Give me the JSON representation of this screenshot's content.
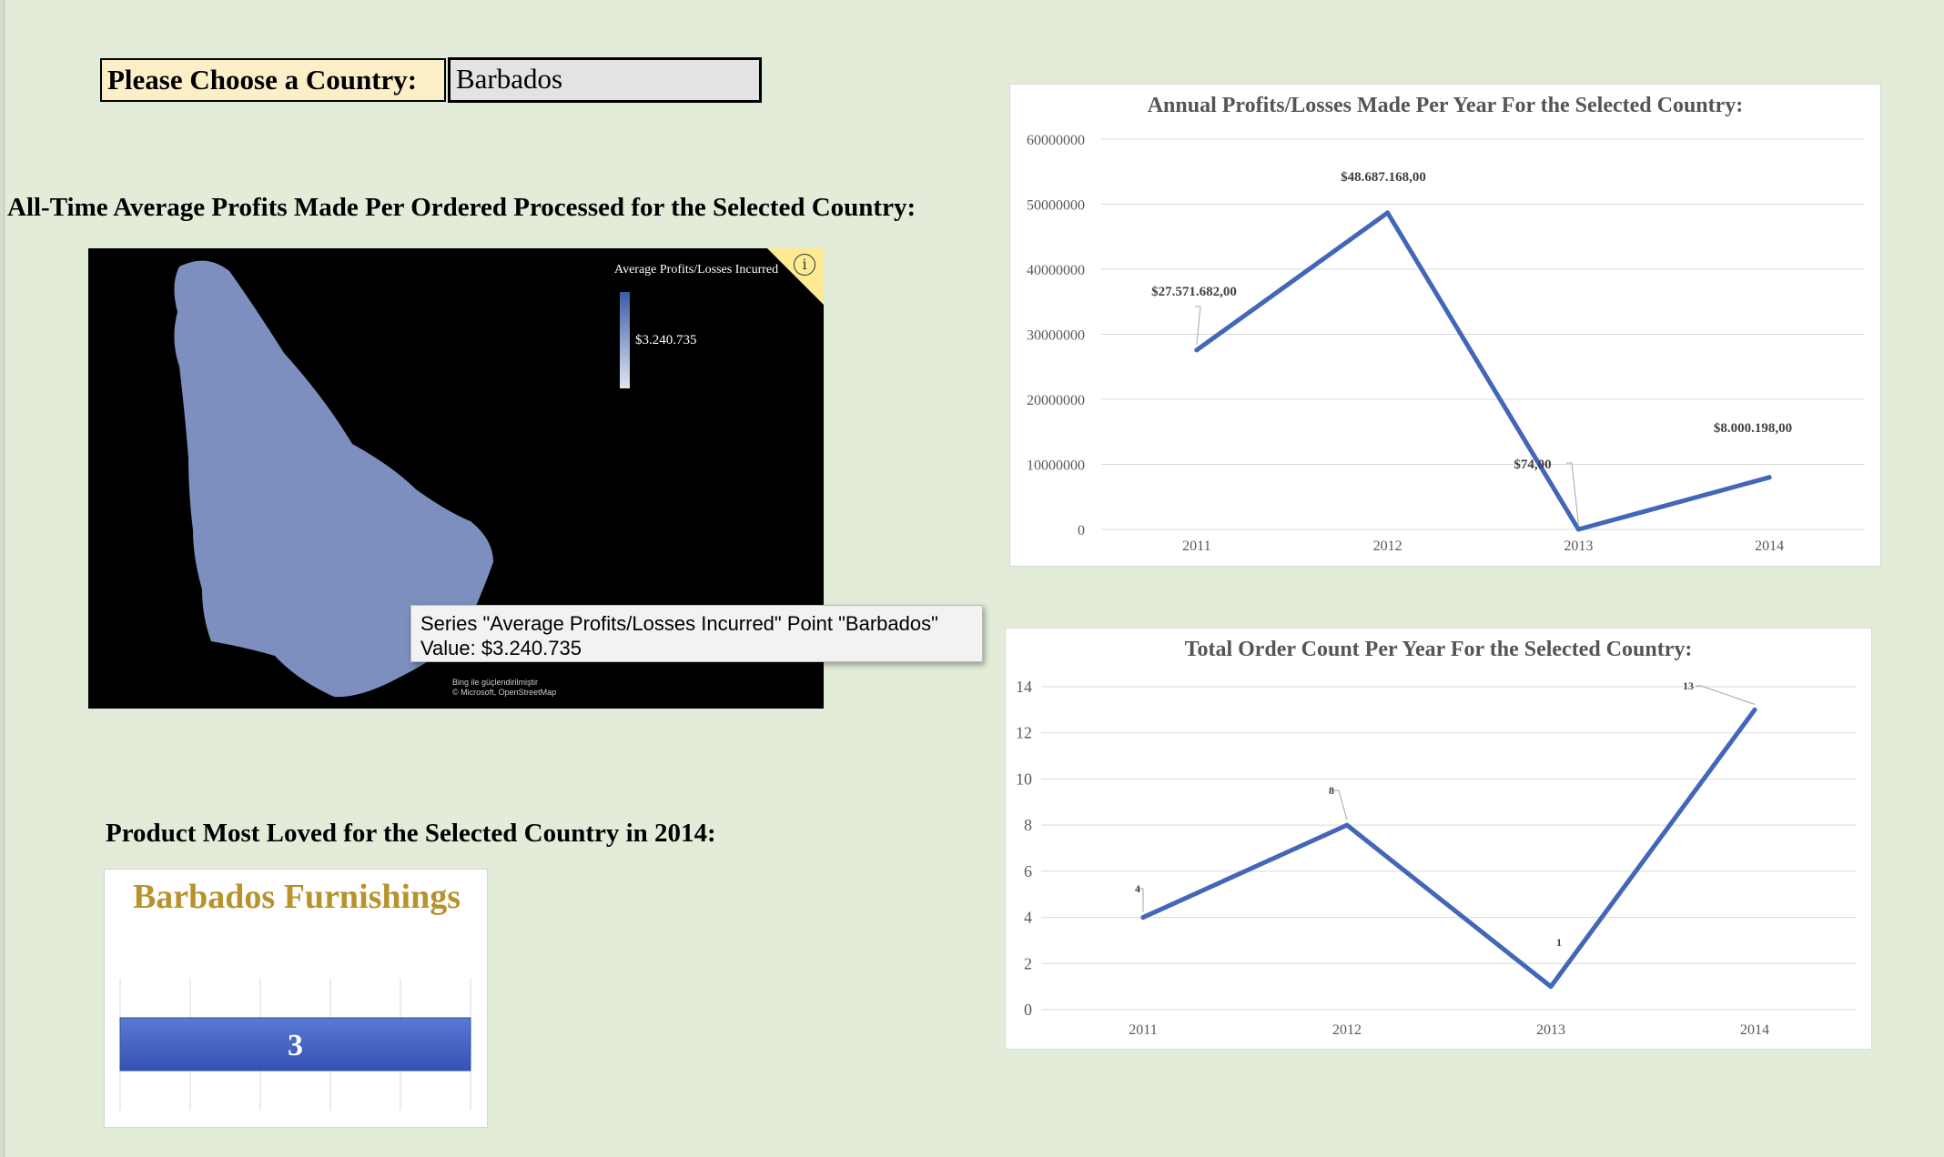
{
  "selector": {
    "label": "Please Choose a Country:",
    "value": "Barbados"
  },
  "avg_section": {
    "heading": "All-Time Average Profits Made Per Ordered Processed for the Selected Country:"
  },
  "map": {
    "legend_title": "Average Profits/Losses Incurred",
    "legend_value": "$3.240.735",
    "legend_colors": [
      "#3d5aa8",
      "#e0e6f3"
    ],
    "region_color": "#7c8fbf",
    "info_glyph": "i",
    "attribution_line1": "Bing ile güçlendirilmiştir",
    "attribution_line2": "© Microsoft, OpenStreetMap",
    "tooltip_line1": "Series \"Average Profits/Losses Incurred\" Point \"Barbados\"",
    "tooltip_line2": "Value: $3.240.735"
  },
  "product_section": {
    "heading": "Product Most Loved for the Selected Country in 2014:",
    "title": "Barbados Furnishings",
    "value_label": "3",
    "title_color": "#b8922a",
    "bar_color": "#3f61c4"
  },
  "chart_data": [
    {
      "type": "line",
      "title": "Annual Profits/Losses Made Per Year For the Selected Country:",
      "categories": [
        "2011",
        "2012",
        "2013",
        "2014"
      ],
      "series": [
        {
          "values": [
            27571682,
            48687168,
            74,
            8000198
          ]
        }
      ],
      "data_labels": [
        "$27.571.682,00",
        "$48.687.168,00",
        "$74,00",
        "$8.000.198,00"
      ],
      "yticks": [
        "0",
        "10000000",
        "20000000",
        "30000000",
        "40000000",
        "50000000",
        "60000000"
      ],
      "ylim": [
        0,
        60000000
      ],
      "grid": true,
      "line_color": "#4266b8"
    },
    {
      "type": "line",
      "title": "Total Order Count Per Year For the Selected Country:",
      "categories": [
        "2011",
        "2012",
        "2013",
        "2014"
      ],
      "series": [
        {
          "values": [
            4,
            8,
            1,
            13
          ]
        }
      ],
      "data_labels": [
        "4",
        "8",
        "1",
        "13"
      ],
      "yticks": [
        "0",
        "2",
        "4",
        "6",
        "8",
        "10",
        "12",
        "14"
      ],
      "ylim": [
        0,
        14
      ],
      "grid": true,
      "line_color": "#4266b8"
    }
  ]
}
